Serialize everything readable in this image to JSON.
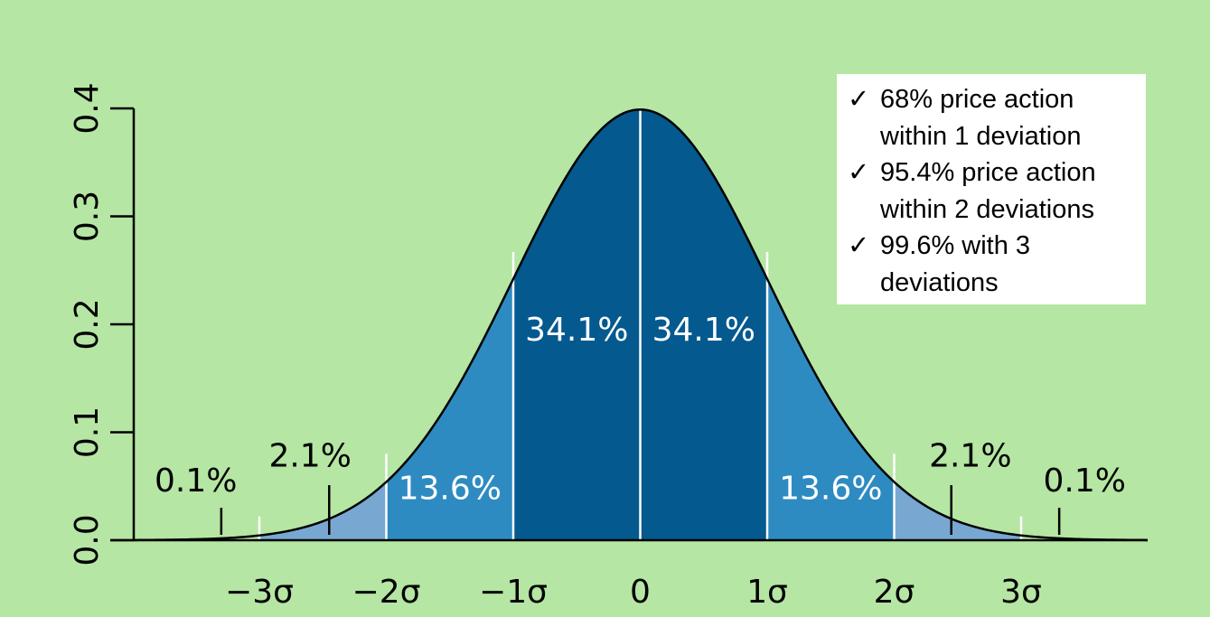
{
  "chart_data": {
    "type": "area",
    "title": "",
    "xlabel": "",
    "ylabel": "",
    "xlim": [
      -4,
      4
    ],
    "ylim": [
      0,
      0.4
    ],
    "x_ticks": [
      {
        "value": -3,
        "label": "−3σ"
      },
      {
        "value": -2,
        "label": "−2σ"
      },
      {
        "value": -1,
        "label": "−1σ"
      },
      {
        "value": 0,
        "label": "0"
      },
      {
        "value": 1,
        "label": "1σ"
      },
      {
        "value": 2,
        "label": "2σ"
      },
      {
        "value": 3,
        "label": "3σ"
      }
    ],
    "y_ticks": [
      {
        "value": 0.0,
        "label": "0.0"
      },
      {
        "value": 0.1,
        "label": "0.1"
      },
      {
        "value": 0.2,
        "label": "0.2"
      },
      {
        "value": 0.3,
        "label": "0.3"
      },
      {
        "value": 0.4,
        "label": "0.4"
      }
    ],
    "grid": false,
    "curve": "normal",
    "mean": 0,
    "sd": 1,
    "segments": [
      {
        "from": -3,
        "to": -2,
        "color": "#78a8d2"
      },
      {
        "from": -2,
        "to": -1,
        "color": "#2e8bc2"
      },
      {
        "from": -1,
        "to": 0,
        "color": "#04598f"
      },
      {
        "from": 0,
        "to": 1,
        "color": "#04598f"
      },
      {
        "from": 1,
        "to": 2,
        "color": "#2e8bc2"
      },
      {
        "from": 2,
        "to": 3,
        "color": "#78a8d2"
      }
    ],
    "region_labels": [
      {
        "text": "0.1%",
        "x": -3.5,
        "y": 0.045,
        "color": "#000000",
        "pointer_x": -3.3
      },
      {
        "text": "2.1%",
        "x": -2.6,
        "y": 0.068,
        "color": "#000000",
        "pointer_x": -2.45
      },
      {
        "text": "13.6%",
        "x": -1.5,
        "y": 0.038,
        "color": "#ffffff"
      },
      {
        "text": "34.1%",
        "x": -0.5,
        "y": 0.185,
        "color": "#ffffff"
      },
      {
        "text": "34.1%",
        "x": 0.5,
        "y": 0.185,
        "color": "#ffffff"
      },
      {
        "text": "13.6%",
        "x": 1.5,
        "y": 0.038,
        "color": "#ffffff"
      },
      {
        "text": "2.1%",
        "x": 2.6,
        "y": 0.068,
        "color": "#000000",
        "pointer_x": 2.45
      },
      {
        "text": "0.1%",
        "x": 3.5,
        "y": 0.045,
        "color": "#000000",
        "pointer_x": 3.3
      }
    ]
  },
  "legend": {
    "items": [
      {
        "check": "✓",
        "text": "68% price action within 1 deviation"
      },
      {
        "check": "✓",
        "text": "95.4% price action within 2 deviations"
      },
      {
        "check": "✓",
        "text": "99.6% with 3 deviations"
      }
    ]
  }
}
